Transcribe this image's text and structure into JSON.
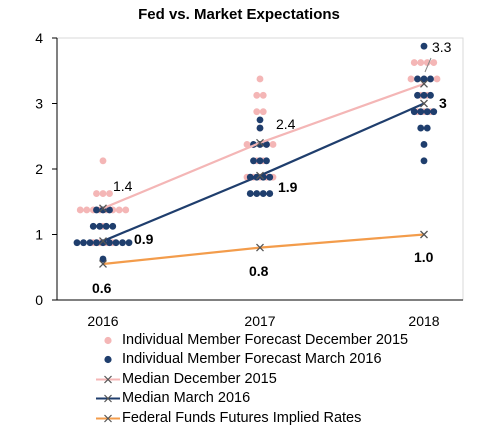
{
  "chart_data": {
    "type": "scatter",
    "title": "Fed vs. Market Expectations",
    "xlabel": "",
    "ylabel": "",
    "categories": [
      "2016",
      "2017",
      "2018"
    ],
    "ylim": [
      0,
      4
    ],
    "yticks": [
      "0",
      "1",
      "2",
      "3",
      "4"
    ],
    "grid": false,
    "legend_position": "bottom",
    "series": [
      {
        "name": "Individual Member Forecast December 2015",
        "kind": "dots",
        "color": "#f4b6b6",
        "points": [
          {
            "x": "2016",
            "y": 0.875,
            "count": 4
          },
          {
            "x": "2016",
            "y": 1.125,
            "count": 1
          },
          {
            "x": "2016",
            "y": 1.375,
            "count": 8
          },
          {
            "x": "2016",
            "y": 1.625,
            "count": 3
          },
          {
            "x": "2016",
            "y": 2.125,
            "count": 1
          },
          {
            "x": "2017",
            "y": 1.875,
            "count": 5
          },
          {
            "x": "2017",
            "y": 2.125,
            "count": 2
          },
          {
            "x": "2017",
            "y": 2.375,
            "count": 5
          },
          {
            "x": "2017",
            "y": 2.625,
            "count": 1
          },
          {
            "x": "2017",
            "y": 2.875,
            "count": 2
          },
          {
            "x": "2017",
            "y": 3.125,
            "count": 2
          },
          {
            "x": "2017",
            "y": 3.375,
            "count": 1
          },
          {
            "x": "2018",
            "y": 2.875,
            "count": 3
          },
          {
            "x": "2018",
            "y": 3.125,
            "count": 2
          },
          {
            "x": "2018",
            "y": 3.375,
            "count": 5
          },
          {
            "x": "2018",
            "y": 3.625,
            "count": 4
          }
        ]
      },
      {
        "name": "Individual Member Forecast March 2016",
        "kind": "dots",
        "color": "#1f3e6d",
        "points": [
          {
            "x": "2016",
            "y": 0.625,
            "count": 1
          },
          {
            "x": "2016",
            "y": 0.875,
            "count": 9
          },
          {
            "x": "2016",
            "y": 1.125,
            "count": 4
          },
          {
            "x": "2016",
            "y": 1.375,
            "count": 3
          },
          {
            "x": "2017",
            "y": 1.625,
            "count": 4
          },
          {
            "x": "2017",
            "y": 1.875,
            "count": 4
          },
          {
            "x": "2017",
            "y": 2.125,
            "count": 3
          },
          {
            "x": "2017",
            "y": 2.375,
            "count": 3
          },
          {
            "x": "2017",
            "y": 2.625,
            "count": 1
          },
          {
            "x": "2017",
            "y": 2.75,
            "count": 1
          },
          {
            "x": "2018",
            "y": 2.125,
            "count": 1
          },
          {
            "x": "2018",
            "y": 2.375,
            "count": 1
          },
          {
            "x": "2018",
            "y": 2.625,
            "count": 2
          },
          {
            "x": "2018",
            "y": 2.875,
            "count": 4
          },
          {
            "x": "2018",
            "y": 3.125,
            "count": 3
          },
          {
            "x": "2018",
            "y": 3.375,
            "count": 3
          },
          {
            "x": "2018",
            "y": 3.875,
            "count": 1
          }
        ]
      },
      {
        "name": "Median December 2015",
        "kind": "line",
        "color": "#f4b6b6",
        "x": [
          "2016",
          "2017",
          "2018"
        ],
        "values": [
          1.4,
          2.4,
          3.3
        ],
        "labels": [
          "1.4",
          "2.4",
          "3.3"
        ],
        "label_bold": false
      },
      {
        "name": "Median March 2016",
        "kind": "line",
        "color": "#1f3e6d",
        "x": [
          "2016",
          "2017",
          "2018"
        ],
        "values": [
          0.9,
          1.9,
          3.0
        ],
        "labels": [
          "0.9",
          "1.9",
          "3"
        ],
        "label_bold": true
      },
      {
        "name": "Federal Funds Futures Implied Rates",
        "kind": "line",
        "color": "#f39c4b",
        "x": [
          "2016",
          "2017",
          "2018"
        ],
        "values": [
          0.55,
          0.8,
          1.0
        ],
        "labels": [
          "0.6",
          "0.8",
          "1.0"
        ],
        "label_bold": true
      }
    ],
    "colors": {
      "marker_x": "#555555",
      "axis": "#000000",
      "plot_border": "#d9d9d9"
    }
  }
}
